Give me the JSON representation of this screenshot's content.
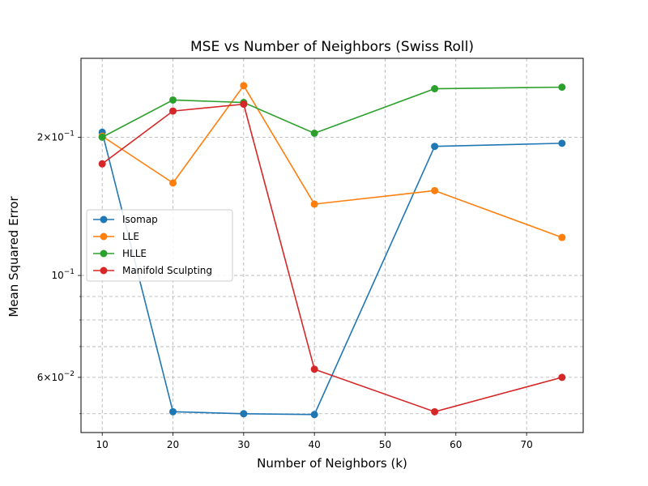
{
  "chart_data": {
    "type": "line",
    "title": "MSE vs Number of Neighbors (Swiss Roll)",
    "xlabel": "Number of Neighbors (k)",
    "ylabel": "Mean Squared Error",
    "yscale": "log",
    "xlim": [
      7,
      78
    ],
    "ylim": [
      0.0455,
      0.297
    ],
    "xticks": [
      10,
      20,
      30,
      40,
      50,
      60,
      70
    ],
    "yticks_major": [
      {
        "value": 0.06,
        "base": "6",
        "exp": "−2"
      },
      {
        "value": 0.1,
        "base": "10",
        "exp": "−1"
      },
      {
        "value": 0.2,
        "base": "2",
        "exp": "−1"
      }
    ],
    "yticks_minor": [
      0.05,
      0.07,
      0.08,
      0.09
    ],
    "grid": true,
    "legend_position": "center-left",
    "x": [
      10,
      20,
      30,
      40,
      57,
      75
    ],
    "series": [
      {
        "name": "Isomap",
        "color": "#1f77b4",
        "values": [
          0.205,
          0.0505,
          0.05,
          0.0498,
          0.191,
          0.194
        ]
      },
      {
        "name": "LLE",
        "color": "#ff7f0e",
        "values": [
          0.201,
          0.159,
          0.259,
          0.143,
          0.153,
          0.121
        ]
      },
      {
        "name": "HLLE",
        "color": "#2ca02c",
        "values": [
          0.2,
          0.241,
          0.238,
          0.204,
          0.255,
          0.257
        ]
      },
      {
        "name": "Manifold Sculpting",
        "color": "#d62728",
        "values": [
          0.175,
          0.228,
          0.236,
          0.0625,
          0.0505,
          0.06
        ]
      }
    ]
  }
}
